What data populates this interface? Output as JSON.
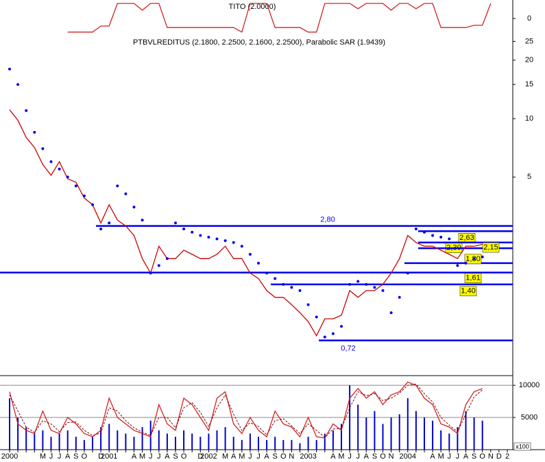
{
  "chart_data": [
    {
      "type": "line",
      "title": "TITO (2.0000)",
      "series": [
        {
          "color": "#d02020",
          "values": [
            null,
            null,
            null,
            null,
            null,
            null,
            null,
            -1.8,
            -1.8,
            -1.8,
            -1.8,
            -1,
            -1,
            2,
            2,
            2,
            1.1,
            2,
            2,
            -1.2,
            -1.2,
            -1.2,
            -1.2,
            -1.2,
            -1.2,
            -1.2,
            -1.2,
            -1.2,
            -1.8,
            2,
            2,
            2,
            -1.2,
            -1.2,
            -1.2,
            -1.2,
            -1.8,
            -1.8,
            2,
            2,
            2,
            2,
            1.3,
            2,
            2,
            2,
            1.1,
            2,
            2,
            1.3,
            2,
            2,
            -1.2,
            -1.2,
            -1.2,
            -1.2,
            -0.9,
            -0.9,
            2,
            null,
            null
          ]
        }
      ],
      "ylim": [
        -2.09,
        2.45
      ],
      "yticks": [
        0
      ]
    },
    {
      "type": "line",
      "title": "PTBVLREDITUS (2.1800, 2.2500, 2.1600, 2.2500), Parabolic SAR (1.9439)",
      "log_scale": true,
      "series": [
        {
          "color": "#cc0000",
          "kind": "line",
          "values": [
            11.1,
            9.8,
            8.0,
            7.1,
            5.8,
            5.1,
            6.0,
            4.9,
            4.7,
            3.9,
            3.6,
            2.9,
            3.6,
            3.0,
            2.8,
            2.5,
            1.9,
            1.6,
            2.2,
            1.9,
            1.9,
            2.1,
            2.0,
            1.9,
            1.9,
            2.0,
            2.2,
            1.9,
            1.9,
            1.6,
            1.5,
            1.3,
            1.2,
            1.2,
            1.1,
            1.0,
            0.9,
            0.76,
            0.93,
            0.93,
            0.97,
            1.3,
            1.2,
            1.3,
            1.3,
            1.4,
            1.6,
            1.9,
            2.5,
            2.3,
            2.2,
            2.2,
            2.1,
            2.0,
            1.9,
            2.2,
            2.2,
            2.25,
            null,
            null,
            null
          ]
        },
        {
          "color": "#0000ee",
          "kind": "dots",
          "values": [
            18,
            15,
            11,
            8.5,
            7,
            6,
            5.5,
            5,
            4.5,
            4,
            3.6,
            2.7,
            2.9,
            4.5,
            4.1,
            3.5,
            3.0,
            1.6,
            1.75,
            1.9,
            2.9,
            2.7,
            2.6,
            2.5,
            2.45,
            2.4,
            2.35,
            2.3,
            2.2,
            2.0,
            1.8,
            1.6,
            1.5,
            1.4,
            1.35,
            1.3,
            1.1,
            0.95,
            0.75,
            0.78,
            0.85,
            1.4,
            1.45,
            1.4,
            1.35,
            1.3,
            1.0,
            1.2,
            1.6,
            2.7,
            2.6,
            2.5,
            2.45,
            2.4,
            1.75,
            1.8,
            1.9,
            1.94,
            null,
            null,
            null
          ]
        }
      ],
      "levels": [
        {
          "value": 2.8,
          "label": "2,80"
        },
        {
          "value": 2.63,
          "label": "2,63"
        },
        {
          "value": 2.3,
          "label": "2,30"
        },
        {
          "value": 2.15,
          "label": "2,15"
        },
        {
          "value": 1.8,
          "label": "1,80"
        },
        {
          "value": 1.61,
          "label": "1,61"
        },
        {
          "value": 1.4,
          "label": "1,40"
        },
        {
          "value": 0.72,
          "label": "0,72"
        }
      ],
      "level_color": "#0000ee",
      "ylim": [
        0.474,
        27.2
      ],
      "yticks": [
        5,
        10,
        15,
        20,
        25
      ]
    },
    {
      "type": "bar",
      "unit_label": "x100",
      "categories": [
        "2000",
        null,
        null,
        null,
        "M",
        "J",
        "J",
        "A",
        "S",
        "O",
        null,
        "D",
        "2001",
        null,
        null,
        "A",
        "M",
        "J",
        "J",
        "A",
        "S",
        "O",
        null,
        "D",
        "2002",
        null,
        "M",
        "A",
        "M",
        "J",
        "J",
        "A",
        "S",
        "O",
        "N",
        null,
        "2003",
        null,
        null,
        "A",
        "M",
        "J",
        "J",
        "A",
        "S",
        "O",
        "N",
        null,
        "2004",
        null,
        null,
        "A",
        "M",
        "J",
        "J",
        "A",
        "S",
        "O",
        "N",
        "D",
        "2"
      ],
      "series": [
        {
          "color": "#0000cc",
          "kind": "bar",
          "values": [
            8000,
            5000,
            3500,
            2500,
            3000,
            2000,
            2500,
            3000,
            2000,
            1500,
            2000,
            3500,
            4000,
            3000,
            2500,
            2000,
            3500,
            4500,
            3000,
            2500,
            2000,
            3000,
            2500,
            2000,
            2500,
            3000,
            3500,
            2000,
            1500,
            2500,
            2000,
            1500,
            2000,
            1500,
            1500,
            1000,
            2000,
            1500,
            2500,
            3000,
            4000,
            10000,
            7000,
            5000,
            6000,
            4000,
            5000,
            5500,
            8000,
            6000,
            5000,
            4500,
            3000,
            2500,
            3500,
            6000,
            5000,
            4500,
            null,
            null,
            null
          ]
        },
        {
          "color": "#d02020",
          "kind": "line",
          "values": [
            9000,
            4000,
            3000,
            2500,
            6000,
            3000,
            2500,
            5000,
            4000,
            2500,
            2000,
            3000,
            8000,
            5000,
            4000,
            3000,
            2500,
            2000,
            7000,
            4000,
            3000,
            8000,
            7000,
            5000,
            3000,
            8000,
            9000,
            4000,
            2500,
            5000,
            3000,
            2000,
            6000,
            4000,
            3500,
            2000,
            5000,
            2000,
            1800,
            4000,
            3000,
            8000,
            9500,
            8000,
            9000,
            7000,
            8500,
            9000,
            10500,
            10000,
            8000,
            7000,
            4000,
            3500,
            2500,
            7000,
            9000,
            9500,
            null,
            null,
            null
          ]
        },
        {
          "color": "#800000",
          "kind": "dashed",
          "values": [
            8500,
            6000,
            3500,
            2700,
            4500,
            4000,
            2800,
            4200,
            4300,
            3000,
            2200,
            2600,
            6500,
            6000,
            4500,
            3400,
            2700,
            2200,
            5000,
            5000,
            3400,
            6500,
            7300,
            5800,
            3600,
            6500,
            8500,
            5500,
            3000,
            4200,
            3600,
            2300,
            4500,
            4800,
            3700,
            2500,
            4000,
            3000,
            1900,
            3200,
            3300,
            6500,
            9000,
            8400,
            8700,
            7600,
            8000,
            8800,
            10000,
            10200,
            8700,
            7400,
            5000,
            3800,
            2800,
            5500,
            8200,
            9300,
            null,
            null,
            null
          ]
        }
      ],
      "ylim": [
        0,
        11500
      ],
      "yticks": [
        5000,
        10000
      ],
      "grid": true
    }
  ]
}
